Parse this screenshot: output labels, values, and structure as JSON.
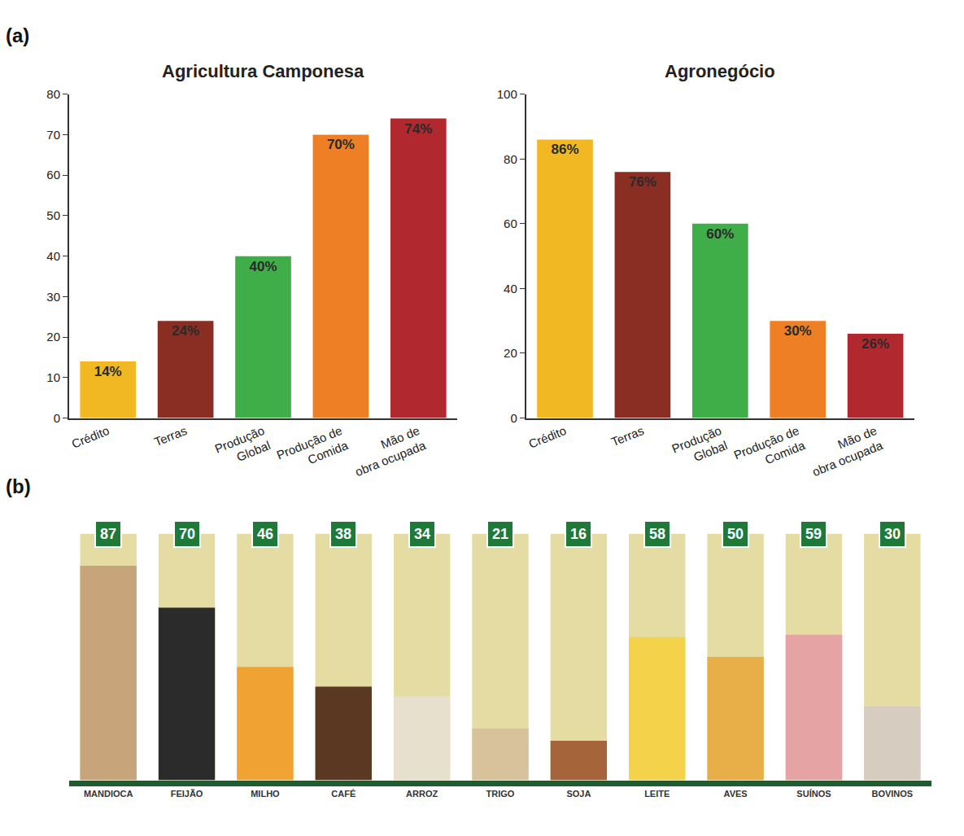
{
  "chart_data": [
    {
      "type": "bar",
      "title": "Agricultura Camponesa",
      "annotations": [
        "(a)"
      ],
      "categories": [
        "Crédito",
        "Terras",
        "Produção Global",
        "Produção de Comida",
        "Mão de obra ocupada"
      ],
      "values": [
        14,
        24,
        40,
        70,
        74
      ],
      "value_labels": [
        "14%",
        "24%",
        "40%",
        "70%",
        "74%"
      ],
      "colors": [
        "#f2b824",
        "#8a2e24",
        "#3fae49",
        "#ef7f24",
        "#b2282f"
      ],
      "ylim": [
        0,
        80
      ],
      "yticks": [
        0,
        10,
        20,
        30,
        40,
        50,
        60,
        70,
        80
      ],
      "grid": false,
      "data_labels": true
    },
    {
      "type": "bar",
      "title": "Agronegócio",
      "categories": [
        "Crédito",
        "Terras",
        "Produção Global",
        "Produção de Comida",
        "Mão de obra ocupada"
      ],
      "values": [
        86,
        76,
        60,
        30,
        26
      ],
      "value_labels": [
        "86%",
        "76%",
        "60%",
        "30%",
        "26%"
      ],
      "colors": [
        "#f2b824",
        "#8a2e24",
        "#3fae49",
        "#ef7f24",
        "#b2282f"
      ],
      "ylim": [
        0,
        100
      ],
      "yticks": [
        0,
        20,
        40,
        60,
        80,
        100
      ],
      "grid": false,
      "data_labels": true
    },
    {
      "type": "bar",
      "annotations": [
        "(b)"
      ],
      "categories": [
        "MANDIOCA",
        "FEIJÃO",
        "MILHO",
        "CAFÉ",
        "ARROZ",
        "TRIGO",
        "SOJA",
        "LEITE",
        "AVES",
        "SUÍNOS",
        "BOVINOS"
      ],
      "values": [
        87,
        70,
        46,
        38,
        34,
        21,
        16,
        58,
        50,
        59,
        30
      ],
      "colors": [
        "#c8a47a",
        "#2b2b2b",
        "#f0a233",
        "#5b3822",
        "#e6e0cc",
        "#d8c29c",
        "#a5643a",
        "#f4d34a",
        "#e8ae48",
        "#e6a3a3",
        "#d6ccc0"
      ],
      "ylim": [
        0,
        100
      ],
      "tick_labels": "x",
      "grid": false,
      "data_labels": true
    }
  ]
}
